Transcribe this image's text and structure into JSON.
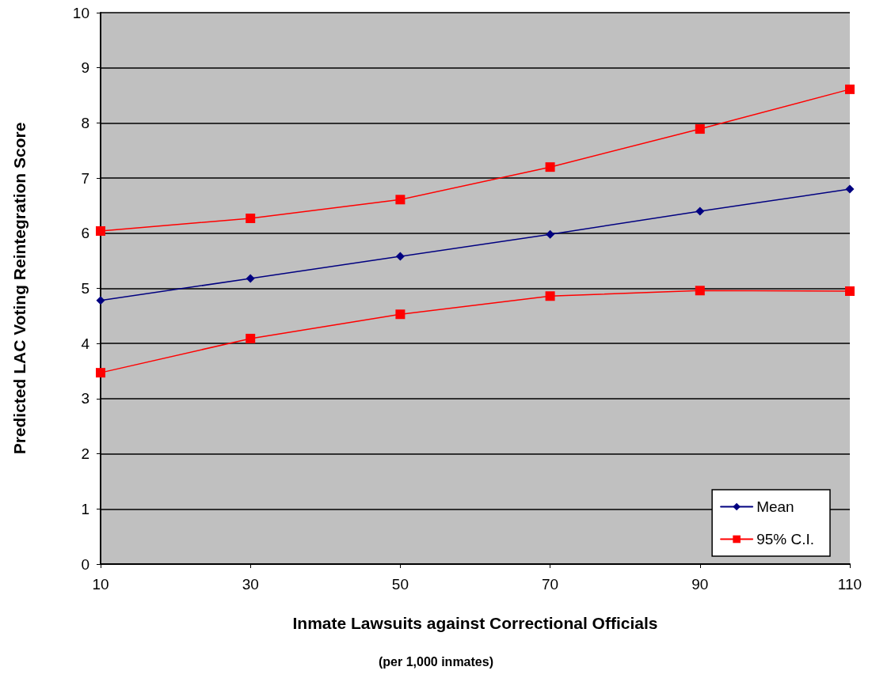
{
  "chart_data": {
    "type": "line",
    "xlabel": "Inmate Lawsuits against Correctional Officials",
    "ylabel": "Predicted LAC Voting Reintegration Score",
    "annotations": [
      "(per 1,000 inmates)"
    ],
    "x": [
      10,
      30,
      50,
      70,
      90,
      110
    ],
    "series": [
      {
        "name": "Mean",
        "color": "#000080",
        "marker": "diamond",
        "values": [
          4.78,
          5.18,
          5.58,
          5.98,
          6.4,
          6.8
        ]
      },
      {
        "name": "95% C.I.",
        "color": "#ff0000",
        "marker": "square",
        "values": [
          6.04,
          6.27,
          6.61,
          7.2,
          7.89,
          8.61
        ]
      },
      {
        "color": "#ff0000",
        "marker": "square",
        "values": [
          3.47,
          4.09,
          4.53,
          4.86,
          4.96,
          4.95
        ]
      }
    ],
    "xlim": [
      10,
      110
    ],
    "xticks": [
      10,
      30,
      50,
      70,
      90,
      110
    ],
    "ylim": [
      0,
      10
    ],
    "yticks": [
      0,
      1,
      2,
      3,
      4,
      5,
      6,
      7,
      8,
      9,
      10
    ],
    "grid": "y",
    "legend": "bottom right",
    "line_style": "solid"
  }
}
